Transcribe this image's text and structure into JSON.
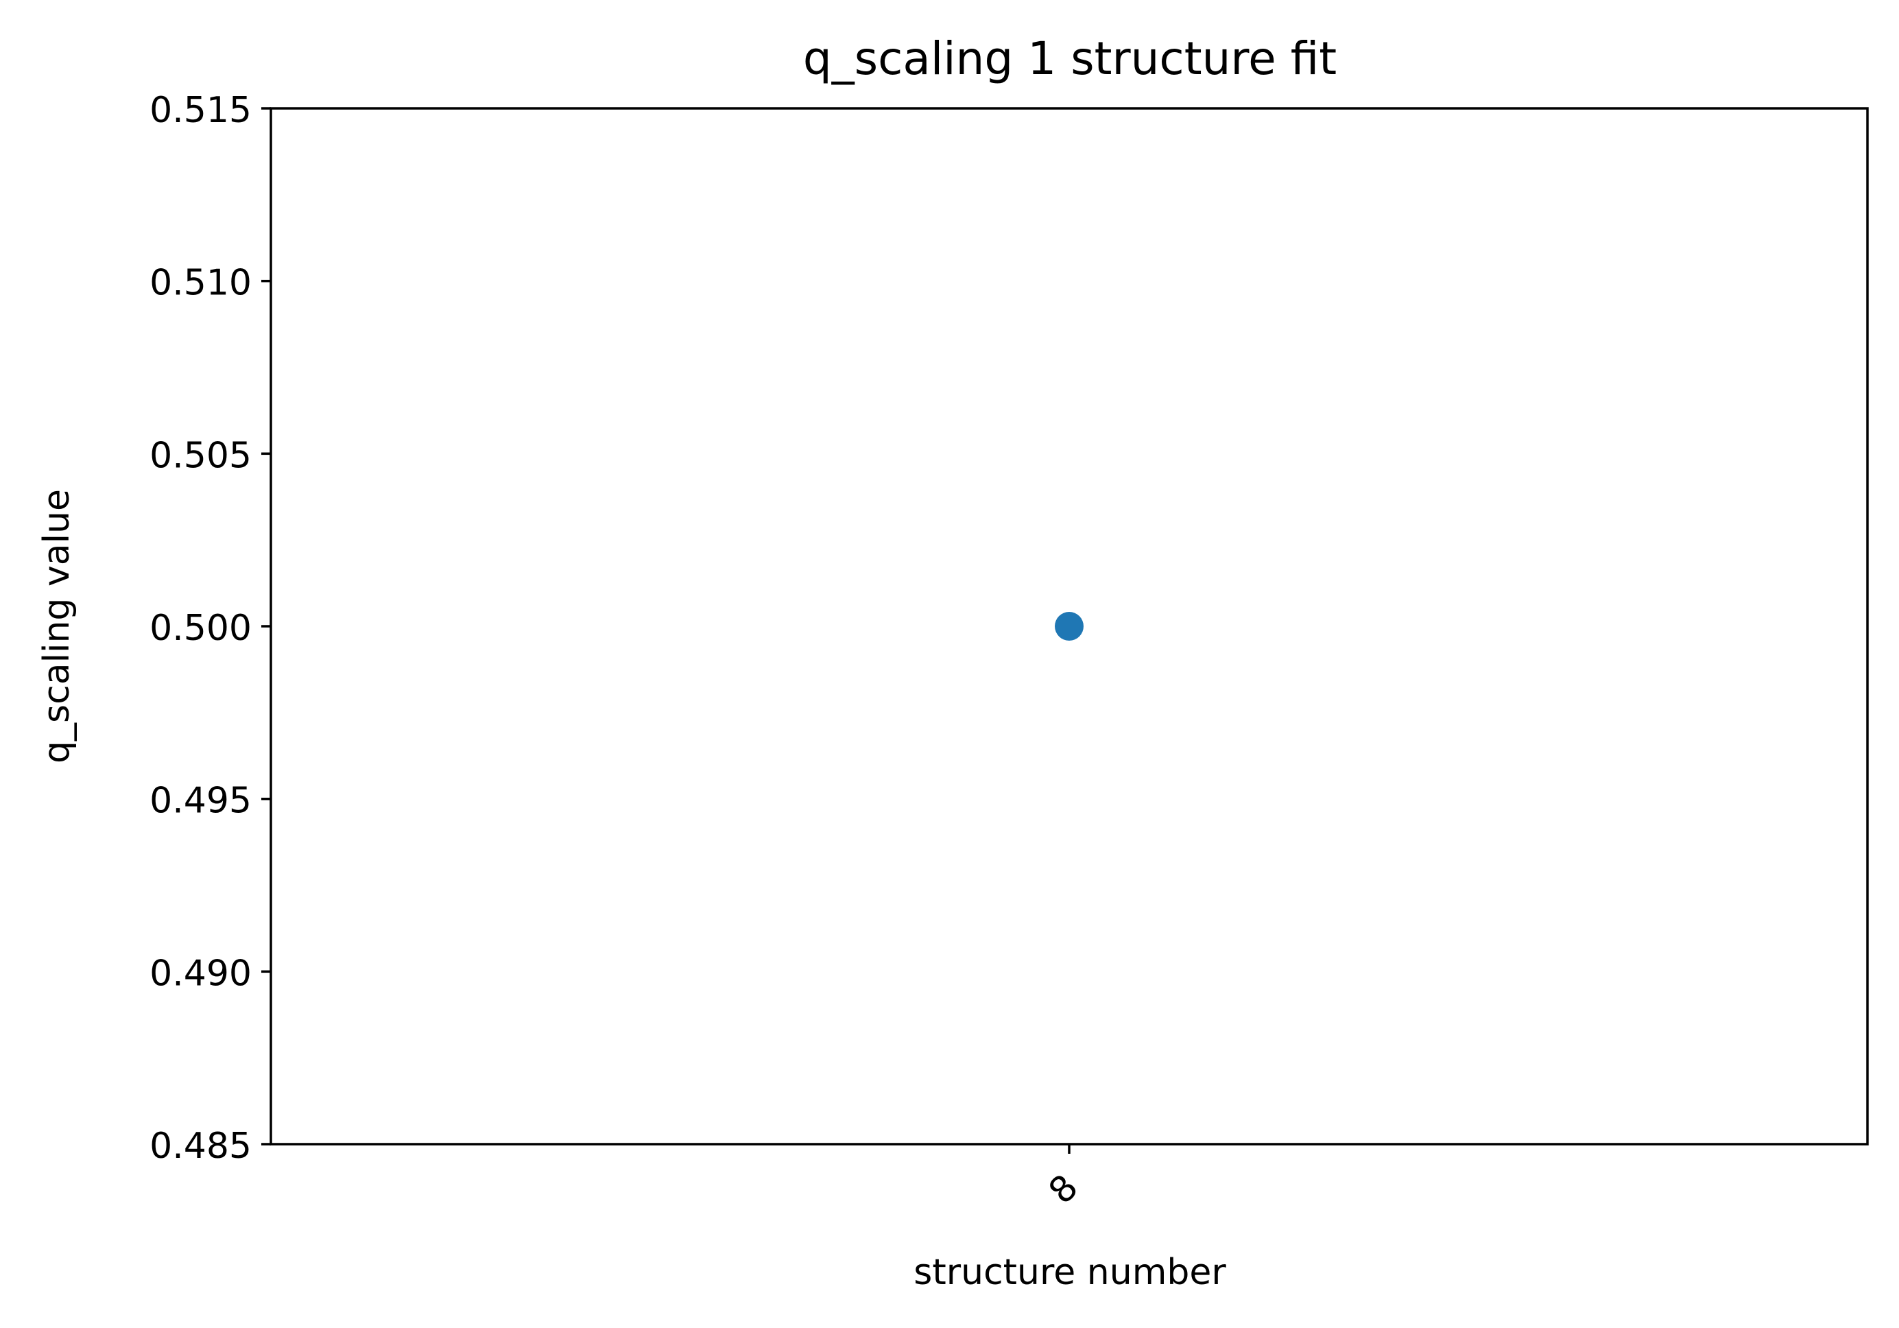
{
  "chart_data": {
    "type": "scatter",
    "title": "q_scaling 1 structure fit",
    "xlabel": "structure number",
    "ylabel": "q_scaling value",
    "categories": [
      "8"
    ],
    "values": [
      0.5
    ],
    "ylim": [
      0.485,
      0.515
    ],
    "yticks": [
      {
        "value": 0.485,
        "label": "0.485"
      },
      {
        "value": 0.49,
        "label": "0.490"
      },
      {
        "value": 0.495,
        "label": "0.495"
      },
      {
        "value": 0.5,
        "label": "0.500"
      },
      {
        "value": 0.505,
        "label": "0.505"
      },
      {
        "value": 0.51,
        "label": "0.510"
      },
      {
        "value": 0.515,
        "label": "0.515"
      }
    ],
    "grid": false,
    "colors": {
      "point": "#1f77b4",
      "axes": "#000000"
    }
  }
}
